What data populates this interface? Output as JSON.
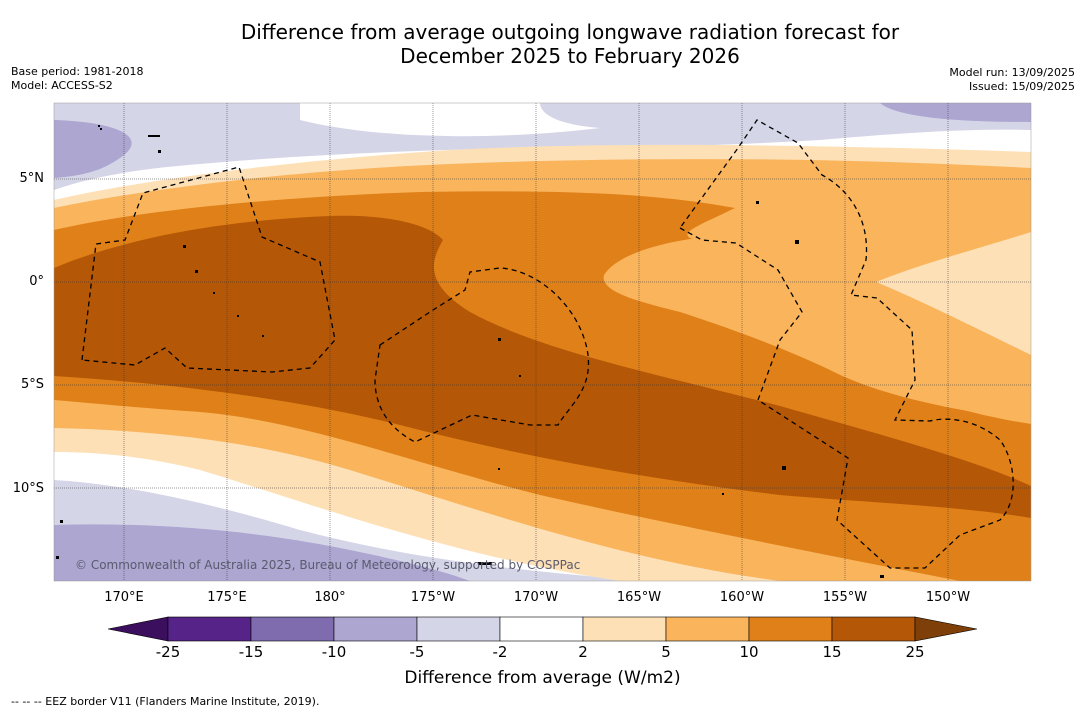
{
  "title": {
    "line1": "Difference from average outgoing longwave radiation forecast for",
    "line2": "December 2025 to February 2026"
  },
  "meta": {
    "base_period": "Base period: 1981-2018",
    "model": "Model: ACCESS-S2",
    "model_run": "Model run: 13/09/2025",
    "issued": "Issued: 15/09/2025"
  },
  "axes": {
    "longitude_labels": [
      "170°E",
      "175°E",
      "180°",
      "175°W",
      "170°W",
      "165°W",
      "160°W",
      "155°W",
      "150°W"
    ],
    "latitude_labels": [
      "5°N",
      "0°",
      "5°S",
      "10°S"
    ]
  },
  "colorbar": {
    "ticks": [
      "-25",
      "-15",
      "-10",
      "-5",
      "-2",
      "2",
      "5",
      "10",
      "15",
      "25"
    ],
    "colors": [
      "#3b0f5e",
      "#562488",
      "#7e6cae",
      "#aca6d0",
      "#d5d5e8",
      "#ffffff",
      "#fde0b6",
      "#f9b45c",
      "#e08018",
      "#b45706",
      "#7e3f08"
    ],
    "label": "Difference from average (W/m2)"
  },
  "credit": "© Commonwealth of Australia 2025, Bureau of Meteorology, supported by COSPPac",
  "legend": "--  --  -- EEZ border V11 (Flanders Marine Institute, 2019)."
}
